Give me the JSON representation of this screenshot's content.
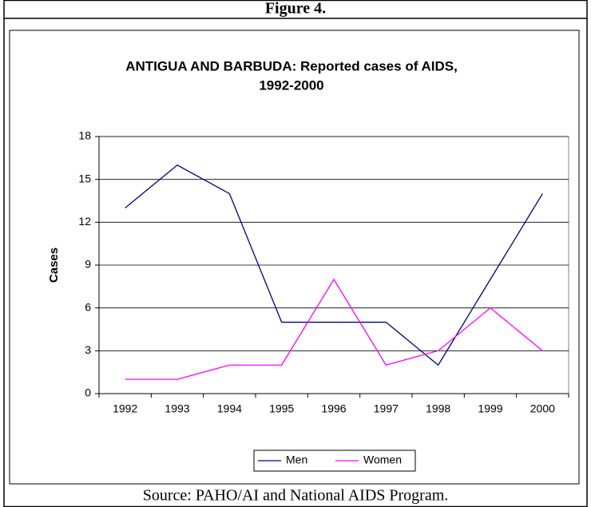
{
  "figure_label": "Figure 4.",
  "source": "Source: PAHO/AI and National AIDS Program.",
  "chart_data": {
    "type": "line",
    "title": [
      "ANTIGUA AND BARBUDA: Reported cases of AIDS,",
      "1992-2000"
    ],
    "y_label": "Cases",
    "categories": [
      "1992",
      "1993",
      "1994",
      "1995",
      "1996",
      "1997",
      "1998",
      "1999",
      "2000"
    ],
    "series": [
      {
        "name": "Men",
        "color": "#000080",
        "values": [
          13,
          16,
          14,
          5,
          5,
          5,
          2,
          8,
          14
        ]
      },
      {
        "name": "Women",
        "color": "#ff00ff",
        "values": [
          1,
          1,
          2,
          2,
          8,
          2,
          3,
          6,
          3
        ]
      }
    ],
    "ylim": [
      0,
      18
    ],
    "yticks": [
      0,
      3,
      6,
      9,
      12,
      15,
      18
    ],
    "grid": true,
    "legend": "bottom"
  }
}
